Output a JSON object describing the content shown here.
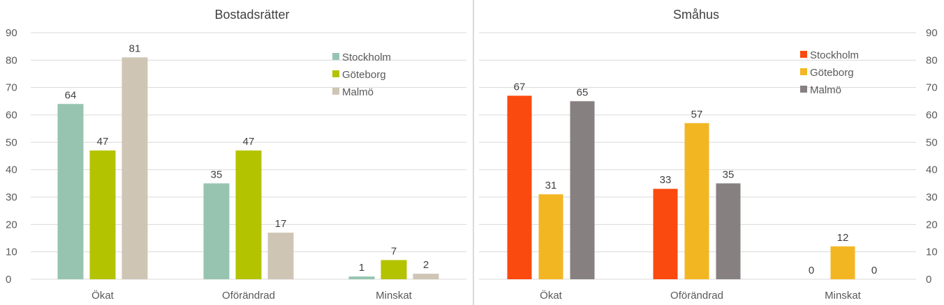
{
  "chart_data": [
    {
      "type": "bar",
      "title": "Bostadsrätter",
      "categories": [
        "Ökat",
        "Oförändrad",
        "Minskat"
      ],
      "series": [
        {
          "name": "Stockholm",
          "color": "#97c4b0",
          "values": [
            64,
            35,
            1
          ]
        },
        {
          "name": "Göteborg",
          "color": "#b3c300",
          "values": [
            47,
            47,
            7
          ]
        },
        {
          "name": "Malmö",
          "color": "#cfc5b4",
          "values": [
            81,
            17,
            2
          ]
        }
      ],
      "data_labels": [
        [
          "64",
          "35",
          "1"
        ],
        [
          "47",
          "47",
          "7"
        ],
        [
          "81",
          "17",
          "2"
        ]
      ],
      "ylim": [
        0,
        90
      ],
      "yticks": [
        "0",
        "10",
        "20",
        "30",
        "40",
        "50",
        "60",
        "70",
        "80",
        "90"
      ],
      "axis_side": "left",
      "legend_position": "top-right",
      "grid": true
    },
    {
      "type": "bar",
      "title": "Småhus",
      "categories": [
        "Ökat",
        "Oförändrad",
        "Minskat"
      ],
      "series": [
        {
          "name": "Stockholm",
          "color": "#fa4a0f",
          "values": [
            67,
            33,
            0
          ]
        },
        {
          "name": "Göteborg",
          "color": "#f3b623",
          "values": [
            31,
            57,
            12
          ]
        },
        {
          "name": "Malmö",
          "color": "#878080",
          "values": [
            65,
            35,
            0
          ]
        }
      ],
      "data_labels": [
        [
          "67",
          "33",
          "0"
        ],
        [
          "31",
          "57",
          "12"
        ],
        [
          "65",
          "35",
          "0"
        ]
      ],
      "ylim": [
        0,
        90
      ],
      "yticks": [
        "0",
        "10",
        "20",
        "30",
        "40",
        "50",
        "60",
        "70",
        "80",
        "90"
      ],
      "axis_side": "right",
      "legend_position": "top-right",
      "grid": true
    }
  ]
}
